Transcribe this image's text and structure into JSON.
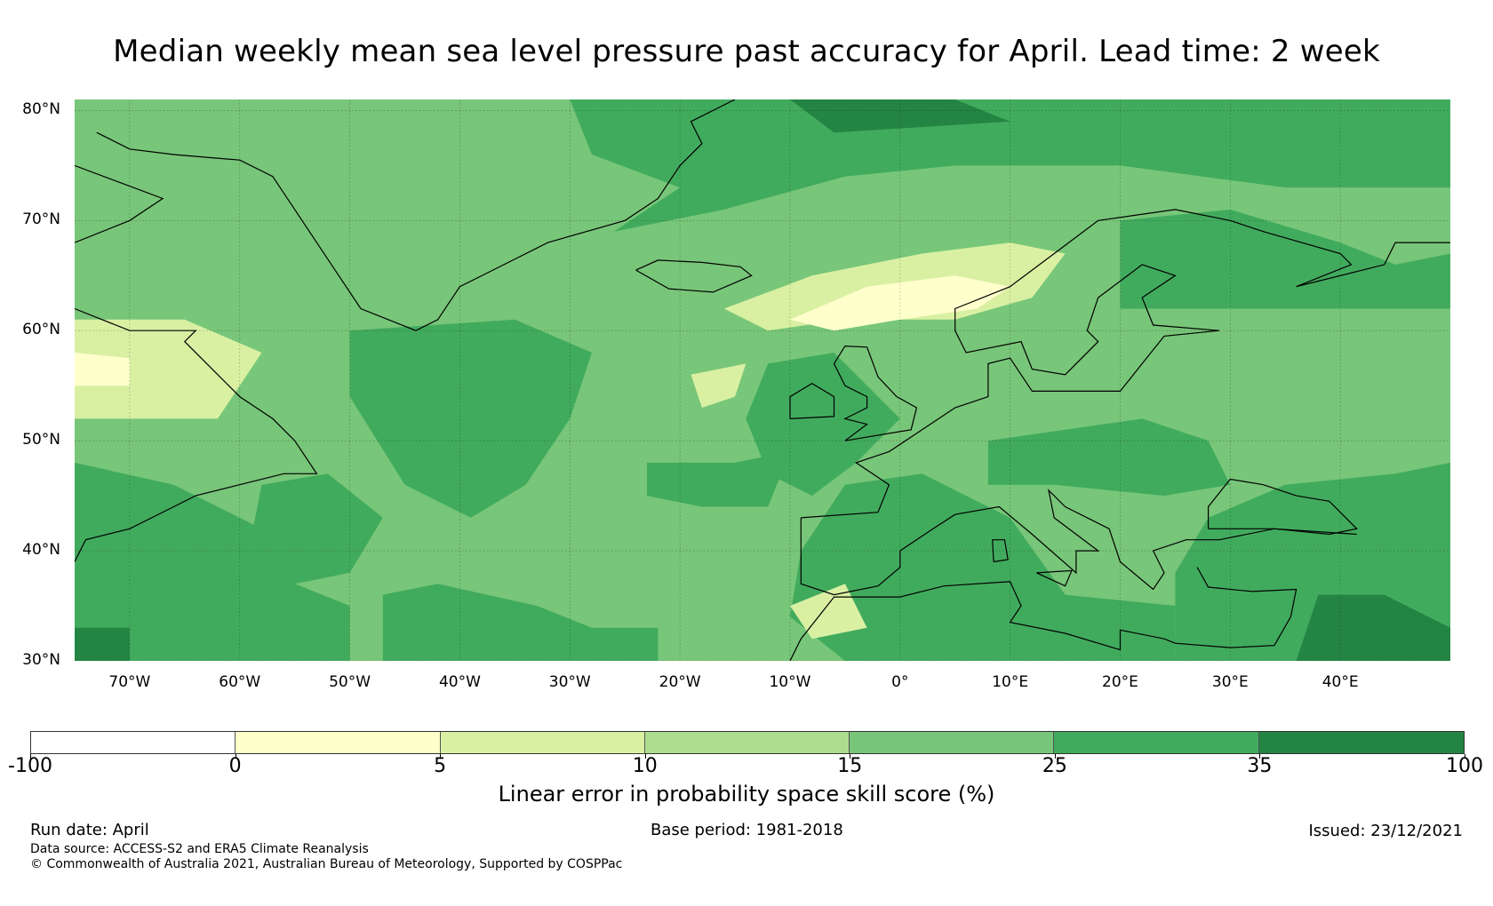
{
  "title": "Median weekly mean sea level pressure past accuracy for April. Lead time: 2 week",
  "map": {
    "lat_labels": [
      "80°N",
      "70°N",
      "60°N",
      "50°N",
      "40°N",
      "30°N"
    ],
    "lon_labels": [
      "70°W",
      "60°W",
      "50°W",
      "40°W",
      "30°W",
      "20°W",
      "10°W",
      "0°",
      "10°E",
      "20°E",
      "30°E",
      "40°E"
    ],
    "extent": {
      "lon": [
        -75,
        50
      ],
      "lat": [
        30,
        81
      ]
    },
    "grid": "on"
  },
  "colorbar": {
    "ticks": [
      "-100",
      "0",
      "5",
      "10",
      "15",
      "25",
      "35",
      "100"
    ],
    "bins": [
      {
        "range": "-100 to 0",
        "color": "#ffffff"
      },
      {
        "range": "0 to 5",
        "color": "#ffffcc"
      },
      {
        "range": "5 to 10",
        "color": "#d9f0a3"
      },
      {
        "range": "10 to 15",
        "color": "#addd8e"
      },
      {
        "range": "15 to 25",
        "color": "#78c679"
      },
      {
        "range": "25 to 35",
        "color": "#41ab5d"
      },
      {
        "range": "35 to 100",
        "color": "#238443"
      }
    ],
    "label": "Linear error in probability space skill score (%)"
  },
  "footer": {
    "run_date": "Run date: April",
    "base_period": "Base period: 1981-2018",
    "issued": "Issued: 23/12/2021",
    "data_source": "Data source: ACCESS-S2 and ERA5 Climate Reanalysis",
    "copyright": "© Commonwealth of Australia 2021, Australian Bureau of Meteorology, Supported by COSPPac"
  }
}
